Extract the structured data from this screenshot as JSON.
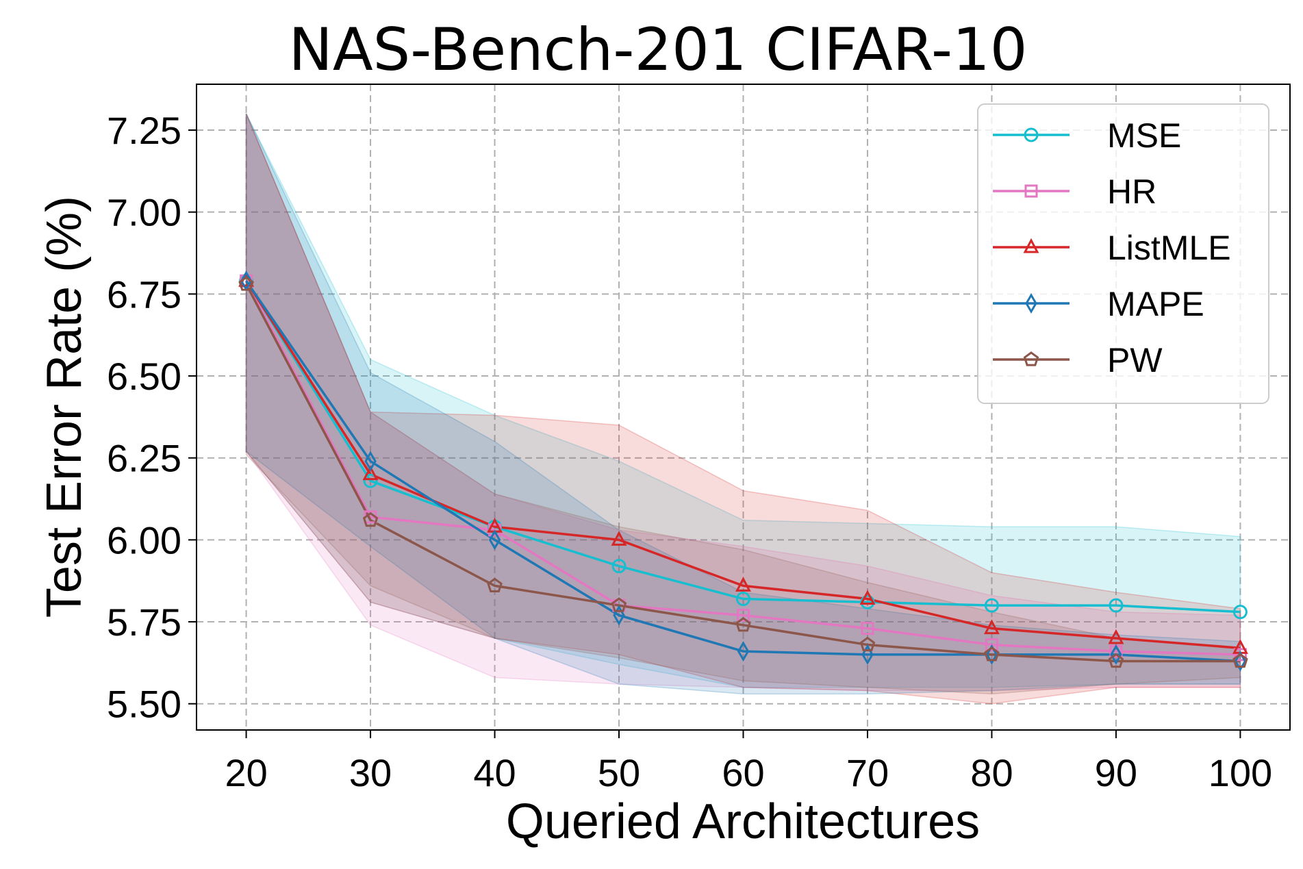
{
  "chart_data": {
    "type": "line",
    "title": "NAS-Bench-201 CIFAR-10",
    "xlabel": "Queried Architectures",
    "ylabel": "Test Error Rate (%)",
    "x": [
      20,
      30,
      40,
      50,
      60,
      70,
      80,
      90,
      100
    ],
    "xlim": [
      16,
      104
    ],
    "ylim": [
      5.42,
      7.39
    ],
    "xticks": [
      "20",
      "30",
      "40",
      "50",
      "60",
      "70",
      "80",
      "90",
      "100"
    ],
    "yticks": [
      "5.50",
      "5.75",
      "6.00",
      "6.25",
      "6.50",
      "6.75",
      "7.00",
      "7.25"
    ],
    "grid": true,
    "legend_position": "top-right",
    "series": [
      {
        "name": "MSE",
        "color": "#17becf",
        "marker": "circle",
        "values": [
          6.79,
          6.18,
          6.04,
          5.92,
          5.82,
          5.81,
          5.8,
          5.8,
          5.78
        ],
        "upper": [
          7.3,
          6.55,
          6.38,
          6.24,
          6.06,
          6.05,
          6.04,
          6.04,
          6.01
        ],
        "lower": [
          6.27,
          5.81,
          5.7,
          5.62,
          5.55,
          5.55,
          5.55,
          5.56,
          5.56
        ]
      },
      {
        "name": "HR",
        "color": "#e377c2",
        "marker": "square",
        "values": [
          6.79,
          6.07,
          6.03,
          5.8,
          5.77,
          5.73,
          5.68,
          5.66,
          5.65
        ],
        "upper": [
          7.3,
          6.39,
          6.14,
          6.03,
          5.98,
          5.92,
          5.83,
          5.78,
          5.77
        ],
        "lower": [
          6.27,
          5.74,
          5.58,
          5.56,
          5.55,
          5.54,
          5.54,
          5.55,
          5.55
        ]
      },
      {
        "name": "ListMLE",
        "color": "#d62728",
        "marker": "triangle",
        "values": [
          6.79,
          6.2,
          6.04,
          6.0,
          5.86,
          5.82,
          5.73,
          5.7,
          5.67
        ],
        "upper": [
          7.3,
          6.39,
          6.38,
          6.35,
          6.15,
          6.09,
          5.9,
          5.84,
          5.79
        ],
        "lower": [
          6.27,
          5.81,
          5.7,
          5.65,
          5.55,
          5.54,
          5.5,
          5.55,
          5.55
        ]
      },
      {
        "name": "MAPE",
        "color": "#1f77b4",
        "marker": "diamond",
        "values": [
          6.79,
          6.24,
          6.0,
          5.77,
          5.66,
          5.65,
          5.65,
          5.65,
          5.63
        ],
        "upper": [
          7.3,
          6.51,
          6.3,
          6.03,
          5.84,
          5.79,
          5.74,
          5.71,
          5.69
        ],
        "lower": [
          6.27,
          5.98,
          5.7,
          5.56,
          5.53,
          5.53,
          5.54,
          5.56,
          5.56
        ]
      },
      {
        "name": "PW",
        "color": "#8c564b",
        "marker": "pentagon",
        "values": [
          6.78,
          6.06,
          5.86,
          5.8,
          5.74,
          5.68,
          5.65,
          5.63,
          5.63
        ],
        "upper": [
          7.3,
          6.39,
          6.14,
          6.04,
          5.97,
          5.87,
          5.78,
          5.7,
          5.67
        ],
        "lower": [
          6.26,
          5.86,
          5.7,
          5.64,
          5.57,
          5.55,
          5.53,
          5.56,
          5.58
        ]
      }
    ]
  }
}
